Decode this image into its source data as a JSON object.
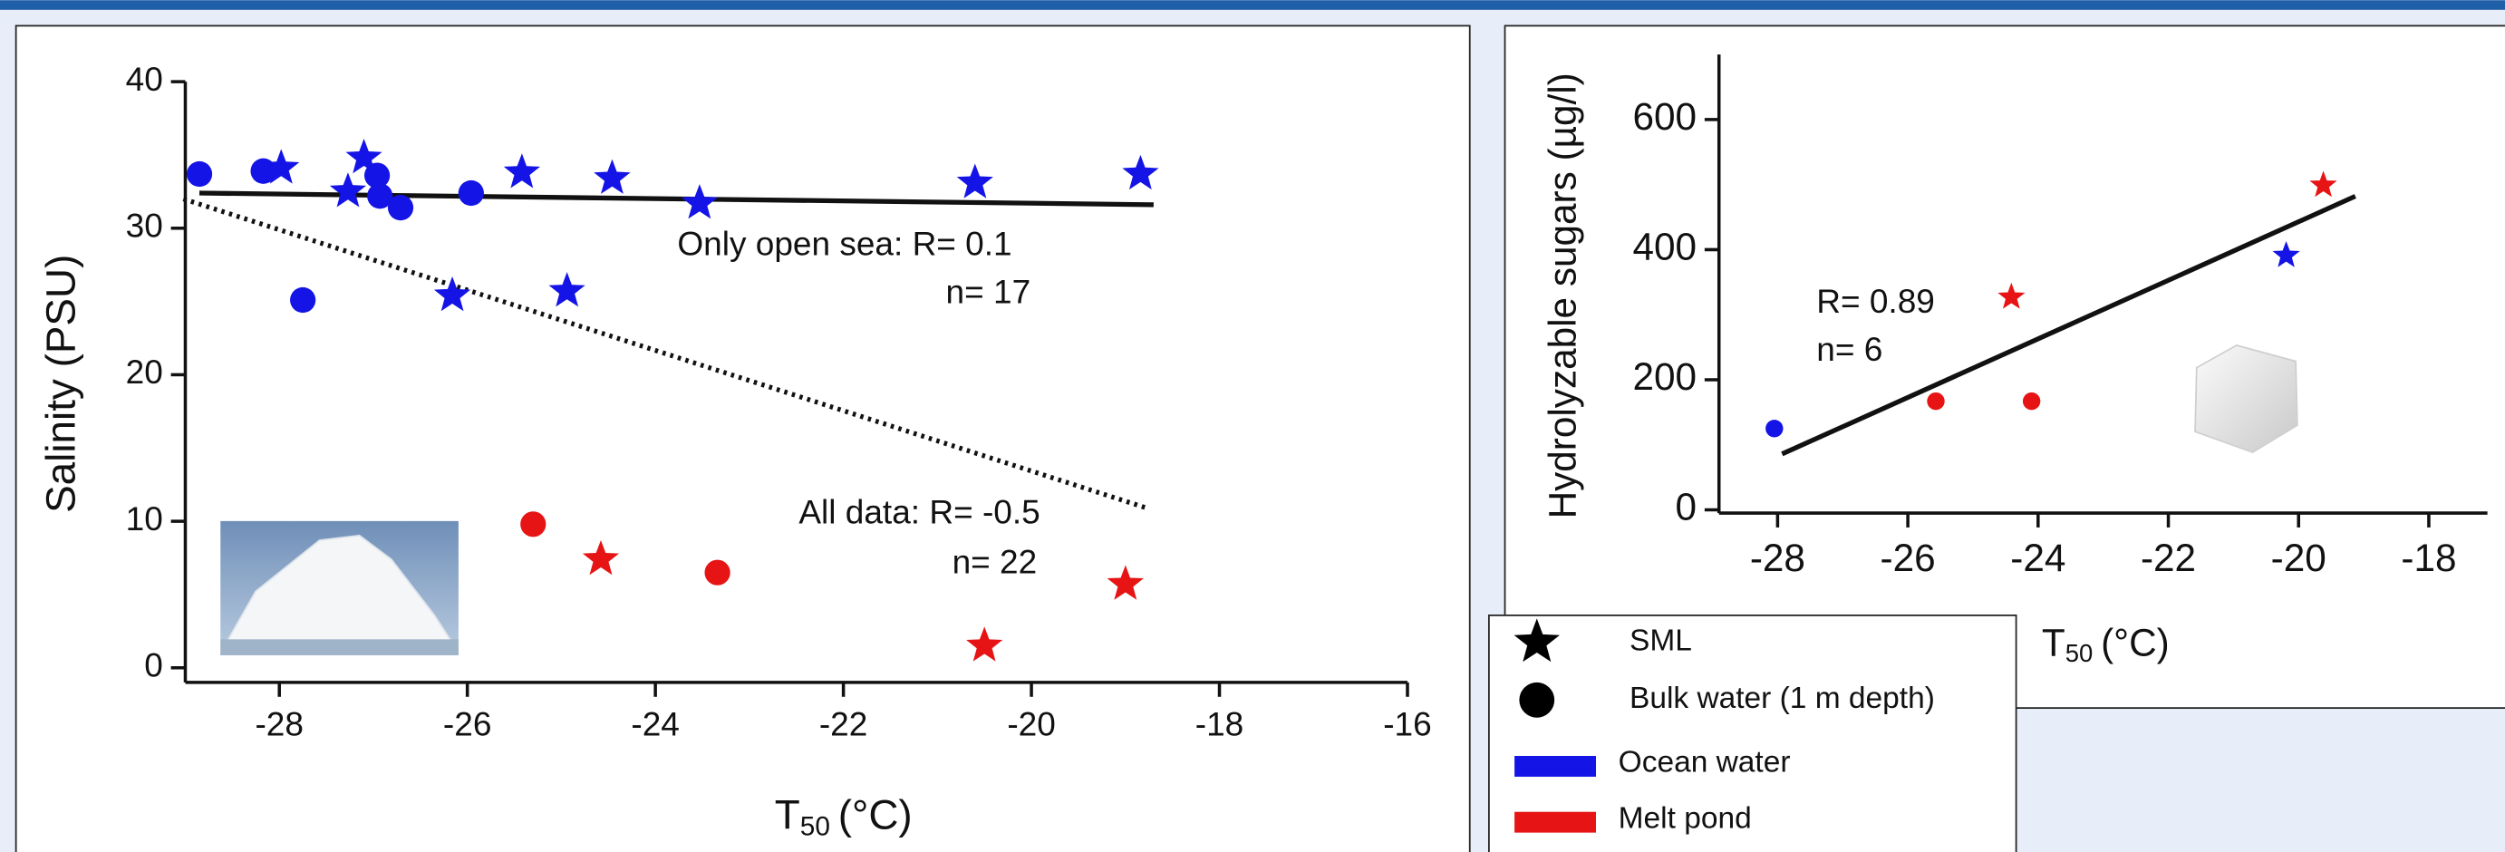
{
  "chart_data": [
    {
      "type": "scatter",
      "y_label": "Salinity (PSU)",
      "x_label": [
        "T",
        "50",
        "(°C)"
      ],
      "xlim": [
        -29,
        -16
      ],
      "xticks": [
        -28,
        -26,
        -24,
        -22,
        -20,
        -18,
        -16
      ],
      "ylim": [
        -1,
        40
      ],
      "yticks": [
        0,
        10,
        20,
        30,
        40
      ],
      "series": [
        {
          "marker": "circle",
          "color": "#1414e6",
          "x": [
            -28.85,
            -28.17,
            -27.75,
            -26.96,
            -26.93,
            -26.71,
            -25.96
          ],
          "values": [
            33.7,
            33.9,
            25.1,
            33.6,
            32.2,
            31.4,
            32.4
          ]
        },
        {
          "marker": "star",
          "color": "#1414e6",
          "x": [
            -27.98,
            -27.27,
            -27.1,
            -26.16,
            -25.42,
            -24.94,
            -24.46,
            -23.53,
            -20.6,
            -18.84
          ],
          "values": [
            34.1,
            32.5,
            34.8,
            25.4,
            33.8,
            25.7,
            33.4,
            31.7,
            33.1,
            33.7
          ]
        },
        {
          "marker": "circle",
          "color": "#e61414",
          "x": [
            -25.3,
            -23.34
          ],
          "values": [
            9.8,
            6.5
          ]
        },
        {
          "marker": "star",
          "color": "#e61414",
          "x": [
            -24.58,
            -20.5,
            -19.0
          ],
          "values": [
            7.4,
            1.5,
            5.7
          ]
        }
      ],
      "fit_lines": [
        {
          "style": "solid",
          "x": [
            -28.85,
            -18.7
          ],
          "values": [
            32.4,
            31.6
          ]
        },
        {
          "style": "dotted",
          "x": [
            -29.02,
            -18.77
          ],
          "values": [
            32.0,
            10.9
          ]
        }
      ],
      "annotations": [
        "Only open sea: R= 0.1",
        "n= 17",
        "All data: R= -0.5",
        "n= 22"
      ]
    },
    {
      "type": "scatter",
      "y_label": "Hydrolyzable sugars (µg/l)",
      "x_label": [
        "T",
        "50",
        "(°C)"
      ],
      "xlim": [
        -28.9,
        -17.1
      ],
      "xticks": [
        -28,
        -26,
        -24,
        -22,
        -20,
        -18
      ],
      "ylim": [
        -5,
        700
      ],
      "yticks": [
        0,
        200,
        400,
        600
      ],
      "series": [
        {
          "marker": "circle",
          "color": "#1414e6",
          "x": [
            -28.05
          ],
          "values": [
            125
          ]
        },
        {
          "marker": "circle",
          "color": "#e61414",
          "x": [
            -25.57,
            -24.1
          ],
          "values": [
            167,
            167
          ]
        },
        {
          "marker": "star",
          "color": "#e61414",
          "x": [
            -24.41,
            -19.62
          ],
          "values": [
            327,
            499
          ]
        },
        {
          "marker": "star",
          "color": "#1414e6",
          "x": [
            -20.19
          ],
          "values": [
            391
          ]
        }
      ],
      "fit_lines": [
        {
          "style": "solid",
          "x": [
            -27.93,
            -19.13
          ],
          "values": [
            86,
            482
          ]
        }
      ],
      "annotations": [
        "R= 0.89",
        "n= 6"
      ]
    }
  ],
  "legend": {
    "markers": [
      {
        "label": "SML",
        "marker": "star"
      },
      {
        "label": "Bulk water (1 m depth)",
        "marker": "circle"
      }
    ],
    "colors": [
      {
        "label": "Ocean water",
        "color": "#1414e6"
      },
      {
        "label": "Melt pond",
        "color": "#e61414"
      }
    ]
  }
}
